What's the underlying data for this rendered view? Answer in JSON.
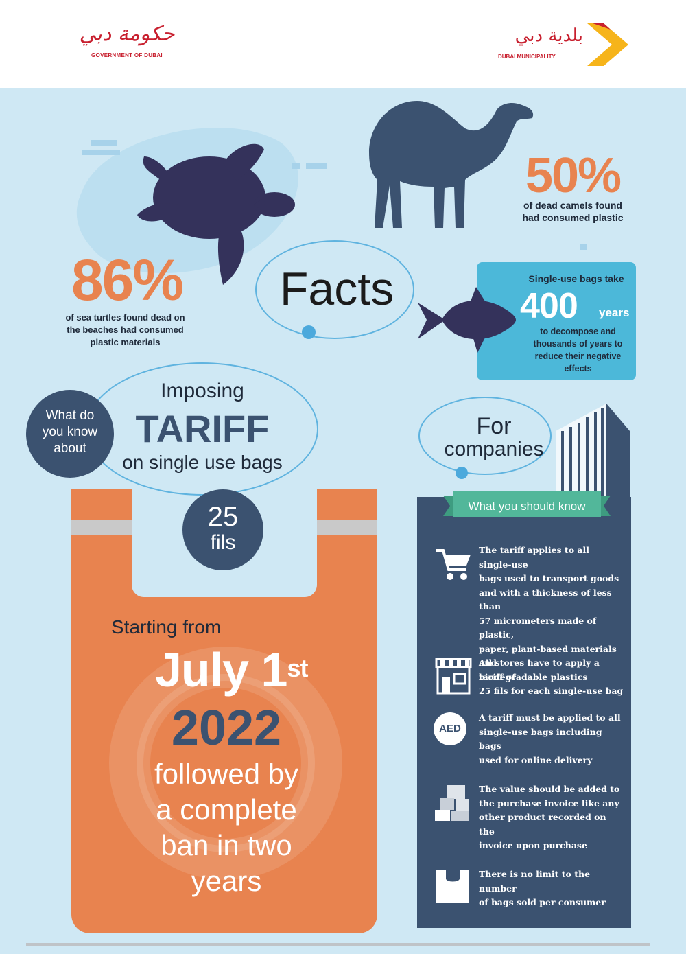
{
  "header": {
    "gov_logo_arabic": "حكومة دبي",
    "gov_logo_english": "GOVERNMENT OF DUBAI",
    "dm_logo_arabic": "بلدية دبي",
    "dm_logo_english": "DUBAI MUNICIPALITY"
  },
  "facts": {
    "title": "Facts",
    "turtle": {
      "percent": "86%",
      "text": [
        "of sea turtles found dead on",
        "the beaches had consumed",
        "plastic materials"
      ]
    },
    "camel": {
      "percent": "50%",
      "text": [
        "of dead camels found",
        "had consumed plastic"
      ]
    },
    "fish": {
      "line1": "Single-use bags take",
      "number": "400",
      "unit": "years",
      "text": [
        "to decompose and",
        "thousands of years to",
        "reduce their negative",
        "effects"
      ]
    }
  },
  "tariff": {
    "question": [
      "What do",
      "you know",
      "about"
    ],
    "line1": "Imposing",
    "line2": "TARIFF",
    "line3": "on single use bags",
    "price": "25",
    "price_unit": "fils"
  },
  "bag": {
    "starting": "Starting from",
    "date": "July 1",
    "date_suffix": "st",
    "year": "2022",
    "followup": [
      "followed by",
      "a complete",
      "ban in two",
      "years"
    ]
  },
  "companies": {
    "title": [
      "For",
      "companies"
    ],
    "ribbon": "What you should know",
    "items": [
      {
        "icon": "shopping-cart-icon",
        "lines": [
          "The tariff applies to all single-use",
          "bags used to transport goods",
          "and with a thickness of less than",
          "57 micrometers made of plastic,",
          "paper, plant-based materials and",
          "biodegradable plastics"
        ]
      },
      {
        "icon": "store-icon",
        "lines": [
          "All stores have to apply a tariff of",
          "25 fils for each single-use bag"
        ]
      },
      {
        "icon": "aed-coin-icon",
        "badge": "AED",
        "lines": [
          "A tariff must be applied to all",
          "single-use bags including bags",
          "used for online delivery"
        ]
      },
      {
        "icon": "boxes-icon",
        "lines": [
          "The value should be added to",
          "the purchase invoice like any",
          "other product recorded on the",
          "invoice upon purchase"
        ]
      },
      {
        "icon": "bag-icon",
        "lines": [
          "There is no limit to the number",
          "of bags sold per consumer"
        ]
      }
    ]
  },
  "colors": {
    "background": "#cfe8f4",
    "orange": "#e8834f",
    "navy": "#3b5270",
    "teal": "#4cb8d9",
    "green": "#52b79a",
    "red": "#c8202f",
    "yellow": "#f6b41a"
  }
}
